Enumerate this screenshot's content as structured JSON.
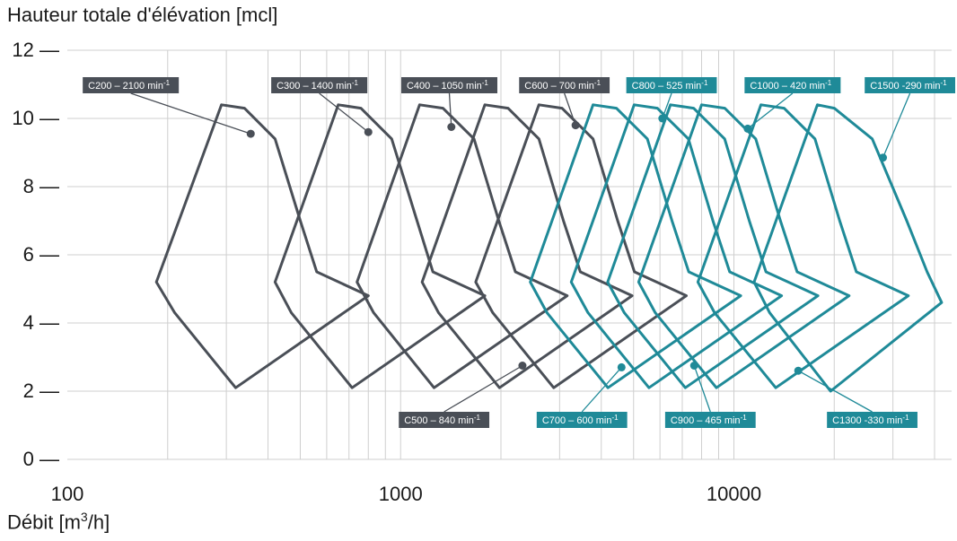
{
  "chart_data": {
    "type": "line",
    "ylabel": "Hauteur totale d'élévation [mcl]",
    "xlabel_prefix": "Débit [m",
    "xlabel_sup": "3",
    "xlabel_suffix": "/h]",
    "x_scale": "log",
    "xlim": [
      100,
      45000
    ],
    "ylim": [
      0,
      12
    ],
    "x_ticks": [
      100,
      1000,
      10000
    ],
    "x_tick_labels": [
      "100",
      "1000",
      "10000"
    ],
    "y_ticks": [
      0,
      2,
      4,
      6,
      8,
      10,
      12
    ],
    "y_tick_suffix": " —",
    "grid": true,
    "colors": {
      "dark": "#4a4f57",
      "teal": "#1f8a98",
      "grid": "#cfcfcf"
    },
    "series": [
      {
        "name": "C200 – 2100 min",
        "sup": "-1",
        "color": "dark",
        "polygon": [
          [
            185,
            5.2
          ],
          [
            290,
            10.4
          ],
          [
            340,
            10.3
          ],
          [
            420,
            9.4
          ],
          [
            500,
            7.0
          ],
          [
            560,
            5.5
          ],
          [
            800,
            4.8
          ],
          [
            320,
            2.1
          ],
          [
            210,
            4.3
          ]
        ],
        "dot": [
          355,
          9.55
        ],
        "label_pos": "top",
        "label_x": 155
      },
      {
        "name": "C300 – 1400 min",
        "sup": "-1",
        "color": "dark",
        "polygon": [
          [
            420,
            5.2
          ],
          [
            650,
            10.4
          ],
          [
            760,
            10.3
          ],
          [
            940,
            9.4
          ],
          [
            1120,
            7.0
          ],
          [
            1250,
            5.5
          ],
          [
            1790,
            4.8
          ],
          [
            715,
            2.1
          ],
          [
            470,
            4.3
          ]
        ],
        "dot": [
          800,
          9.6
        ],
        "label_pos": "top",
        "label_x": 570
      },
      {
        "name": "C400 – 1050 min",
        "sup": "-1",
        "color": "dark",
        "polygon": [
          [
            740,
            5.2
          ],
          [
            1140,
            10.4
          ],
          [
            1340,
            10.3
          ],
          [
            1660,
            9.4
          ],
          [
            1970,
            7.0
          ],
          [
            2210,
            5.5
          ],
          [
            3160,
            4.8
          ],
          [
            1260,
            2.1
          ],
          [
            830,
            4.3
          ]
        ],
        "dot": [
          1420,
          9.75
        ],
        "label_pos": "top",
        "label_x": 1400
      },
      {
        "name": "C500 – 840 min",
        "sup": "-1",
        "color": "dark",
        "polygon": [
          [
            1160,
            5.2
          ],
          [
            1790,
            10.4
          ],
          [
            2100,
            10.3
          ],
          [
            2600,
            9.4
          ],
          [
            3080,
            7.0
          ],
          [
            3460,
            5.5
          ],
          [
            4950,
            4.8
          ],
          [
            1980,
            2.1
          ],
          [
            1300,
            4.3
          ]
        ],
        "dot": [
          2320,
          2.75
        ],
        "label_pos": "bottom",
        "label_x": 1350
      },
      {
        "name": "C600 – 700 min",
        "sup": "-1",
        "color": "dark",
        "polygon": [
          [
            1680,
            5.2
          ],
          [
            2600,
            10.4
          ],
          [
            3050,
            10.3
          ],
          [
            3780,
            9.4
          ],
          [
            4480,
            7.0
          ],
          [
            5030,
            5.5
          ],
          [
            7200,
            4.8
          ],
          [
            2880,
            2.1
          ],
          [
            1890,
            4.3
          ]
        ],
        "dot": [
          3350,
          9.8
        ],
        "label_pos": "top",
        "label_x": 3100
      },
      {
        "name": "C700 – 600 min",
        "sup": "-1",
        "color": "teal",
        "polygon": [
          [
            2450,
            5.2
          ],
          [
            3780,
            10.4
          ],
          [
            4440,
            10.3
          ],
          [
            5500,
            9.4
          ],
          [
            6520,
            7.0
          ],
          [
            7320,
            5.5
          ],
          [
            10480,
            4.8
          ],
          [
            4190,
            2.1
          ],
          [
            2750,
            4.3
          ]
        ],
        "dot": [
          4600,
          2.7
        ],
        "label_pos": "bottom",
        "label_x": 3500
      },
      {
        "name": "C800 – 525 min",
        "sup": "-1",
        "color": "teal",
        "polygon": [
          [
            3250,
            5.2
          ],
          [
            5020,
            10.4
          ],
          [
            5890,
            10.3
          ],
          [
            7300,
            9.4
          ],
          [
            8650,
            7.0
          ],
          [
            9710,
            5.5
          ],
          [
            13900,
            4.8
          ],
          [
            5560,
            2.1
          ],
          [
            3650,
            4.3
          ]
        ],
        "dot": [
          6100,
          10.0
        ],
        "label_pos": "top",
        "label_x": 6500
      },
      {
        "name": "C900 – 465 min",
        "sup": "-1",
        "color": "teal",
        "polygon": [
          [
            4180,
            5.2
          ],
          [
            6450,
            10.4
          ],
          [
            7570,
            10.3
          ],
          [
            9380,
            9.4
          ],
          [
            11120,
            7.0
          ],
          [
            12480,
            5.5
          ],
          [
            17870,
            4.8
          ],
          [
            7150,
            2.1
          ],
          [
            4690,
            4.3
          ]
        ],
        "dot": [
          7600,
          2.75
        ],
        "label_pos": "bottom",
        "label_x": 8500
      },
      {
        "name": "C1000 – 420 min",
        "sup": "-1",
        "color": "teal",
        "polygon": [
          [
            5180,
            5.2
          ],
          [
            8000,
            10.4
          ],
          [
            9390,
            10.3
          ],
          [
            11630,
            9.4
          ],
          [
            13790,
            7.0
          ],
          [
            15480,
            5.5
          ],
          [
            22160,
            4.8
          ],
          [
            8860,
            2.1
          ],
          [
            5810,
            4.3
          ]
        ],
        "dot": [
          11000,
          9.7
        ],
        "label_pos": "top",
        "label_x": 15000
      },
      {
        "name": "C1300 -330 min",
        "sup": "-1",
        "color": "teal",
        "polygon": [
          [
            7800,
            5.2
          ],
          [
            12050,
            10.4
          ],
          [
            14140,
            10.3
          ],
          [
            17510,
            9.4
          ],
          [
            20760,
            7.0
          ],
          [
            23310,
            5.5
          ],
          [
            33370,
            4.8
          ],
          [
            13350,
            2.1
          ],
          [
            8750,
            4.3
          ]
        ],
        "dot": [
          15600,
          2.6
        ],
        "label_pos": "bottom",
        "label_x": 26000
      },
      {
        "name": "C1500 -290 min",
        "sup": "-1",
        "color": "teal",
        "polygon": [
          [
            11500,
            5.2
          ],
          [
            17800,
            10.4
          ],
          [
            20000,
            10.3
          ],
          [
            26000,
            9.4
          ],
          [
            33000,
            7.0
          ],
          [
            38000,
            5.5
          ],
          [
            42000,
            4.6
          ],
          [
            19500,
            2.0
          ],
          [
            12800,
            4.3
          ]
        ],
        "dot": [
          28000,
          8.85
        ],
        "label_pos": "top",
        "label_x": 36000
      }
    ]
  }
}
